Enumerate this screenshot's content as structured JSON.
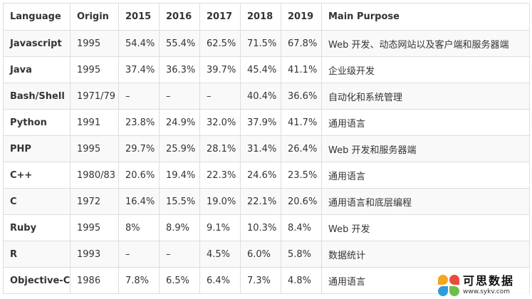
{
  "table": {
    "headers": [
      "Language",
      "Origin",
      "2015",
      "2016",
      "2017",
      "2018",
      "2019",
      "Main Purpose"
    ],
    "rows": [
      [
        "Javascript",
        "1995",
        "54.4%",
        "55.4%",
        "62.5%",
        "71.5%",
        "67.8%",
        "Web 开发、动态网站以及客户端和服务器端"
      ],
      [
        "Java",
        "1995",
        "37.4%",
        "36.3%",
        "39.7%",
        "45.4%",
        "41.1%",
        "企业级开发"
      ],
      [
        "Bash/Shell",
        "1971/79",
        "–",
        "–",
        "–",
        "40.4%",
        "36.6%",
        "自动化和系统管理"
      ],
      [
        "Python",
        "1991",
        "23.8%",
        "24.9%",
        "32.0%",
        "37.9%",
        "41.7%",
        "通用语言"
      ],
      [
        "PHP",
        "1995",
        "29.7%",
        "25.9%",
        "28.1%",
        "31.4%",
        "26.4%",
        "Web 开发和服务器端"
      ],
      [
        "C++",
        "1980/83",
        "20.6%",
        "19.4%",
        "22.3%",
        "24.6%",
        "23.5%",
        "通用语言"
      ],
      [
        "C",
        "1972",
        "16.4%",
        "15.5%",
        "19.0%",
        "22.1%",
        "20.6%",
        "通用语言和底层编程"
      ],
      [
        "Ruby",
        "1995",
        "8%",
        "8.9%",
        "9.1%",
        "10.3%",
        "8.4%",
        "Web 开发"
      ],
      [
        "R",
        "1993",
        "–",
        "–",
        "4.5%",
        "6.0%",
        "5.8%",
        "数据统计"
      ],
      [
        "Objective-C",
        "1986",
        "7.8%",
        "6.5%",
        "6.4%",
        "7.3%",
        "4.8%",
        "通用语言"
      ]
    ]
  },
  "watermark": {
    "title": "可思数据",
    "url": "www.sykv.com",
    "icon": "logo-icon"
  }
}
